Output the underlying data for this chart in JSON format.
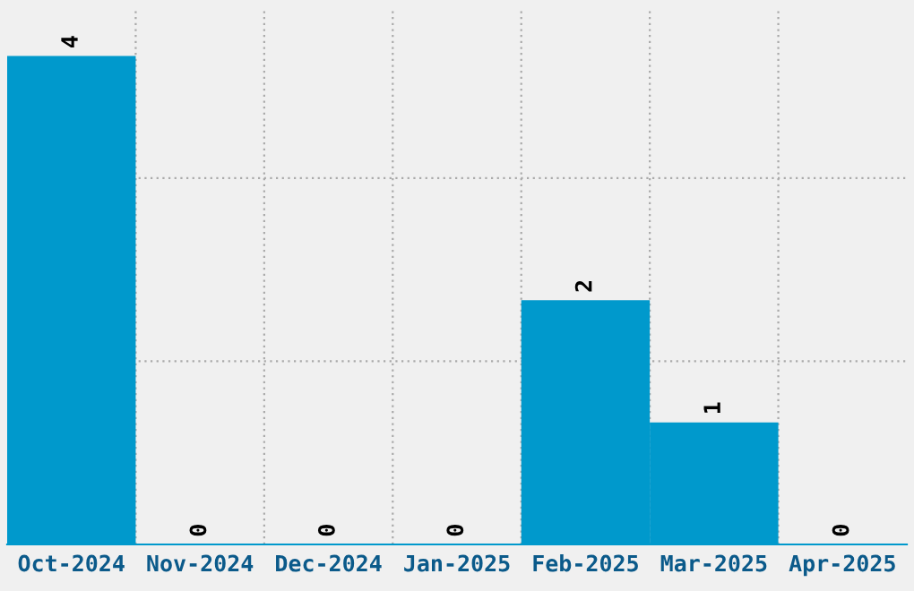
{
  "chart_data": {
    "type": "bar",
    "categories": [
      "Oct-2024",
      "Nov-2024",
      "Dec-2024",
      "Jan-2025",
      "Feb-2025",
      "Mar-2025",
      "Apr-2025"
    ],
    "values": [
      4,
      0,
      0,
      0,
      2,
      1,
      0
    ],
    "color": "#0099cc",
    "data_labels": true,
    "grid": true
  }
}
